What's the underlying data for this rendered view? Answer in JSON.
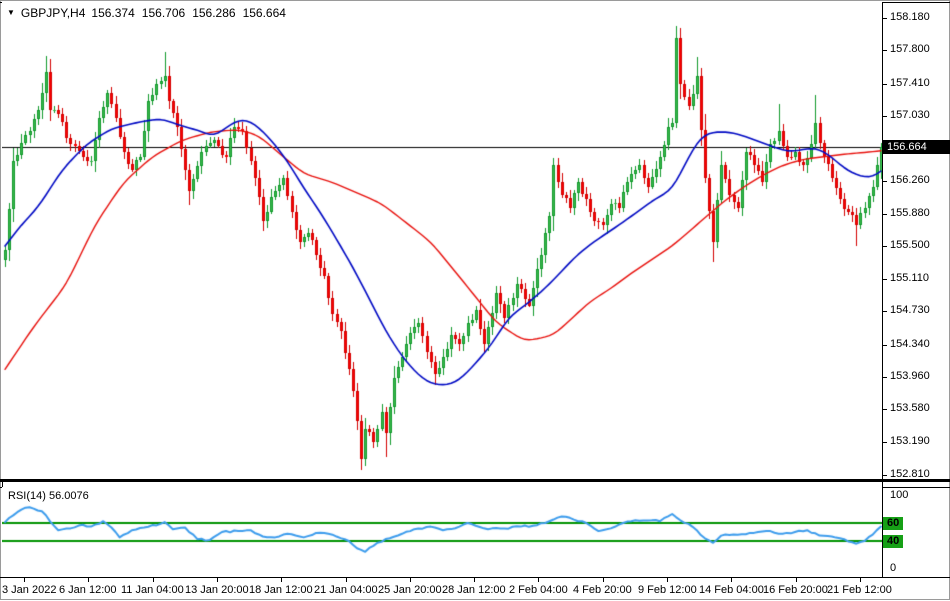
{
  "header": {
    "dropdown_icon": "▼",
    "title": "GBPJPY,H4",
    "open": "156.374",
    "high": "156.706",
    "low": "156.286",
    "close": "156.664"
  },
  "colors": {
    "bull_fill": "#3cb94e",
    "bull_edge": "#119a2b",
    "bear_fill": "#fd0505",
    "bear_edge": "#d40000",
    "ma_fast": "#0009c4",
    "ma_slow": "#e8100c",
    "rsi_line": "#3e9ded",
    "rsi_level": "#009200",
    "price_line": "#000000",
    "badge_bg": "#16a016",
    "current_badge_bg": "#000000"
  },
  "price_axis": {
    "min": 152.76,
    "max": 158.37,
    "current": "156.664",
    "current_value": 156.664,
    "ticks": [
      {
        "label": "158.180",
        "value": 158.18
      },
      {
        "label": "157.800",
        "value": 157.8
      },
      {
        "label": "157.410",
        "value": 157.41
      },
      {
        "label": "157.030",
        "value": 157.03
      },
      {
        "label": "156.260",
        "value": 156.26
      },
      {
        "label": "155.880",
        "value": 155.88
      },
      {
        "label": "155.500",
        "value": 155.5
      },
      {
        "label": "155.110",
        "value": 155.11
      },
      {
        "label": "154.730",
        "value": 154.73
      },
      {
        "label": "154.340",
        "value": 154.34
      },
      {
        "label": "153.960",
        "value": 153.96
      },
      {
        "label": "153.580",
        "value": 153.58
      },
      {
        "label": "153.190",
        "value": 153.19
      },
      {
        "label": "152.810",
        "value": 152.81
      }
    ]
  },
  "time_axis": {
    "labels": [
      "3 Jan 2022",
      "6 Jan 12:00",
      "11 Jan 04:00",
      "13 Jan 20:00",
      "18 Jan 12:00",
      "21 Jan 04:00",
      "25 Jan 20:00",
      "28 Jan 12:00",
      "2 Feb 04:00",
      "4 Feb 20:00",
      "9 Feb 12:00",
      "14 Feb 04:00",
      "16 Feb 20:00",
      "21 Feb 12:00"
    ],
    "first_center": 24,
    "spacing": 64.3
  },
  "rsi_pane": {
    "label": "RSI(14) 56.0076",
    "axis_top": "100",
    "axis_bottom": "0",
    "range": [
      0,
      100
    ],
    "levels": [
      {
        "label": "60",
        "value": 60
      },
      {
        "label": "40",
        "value": 40
      }
    ]
  },
  "chart_data": {
    "type": "candlestick",
    "symbol": "GBPJPY",
    "timeframe": "H4",
    "title": "GBPJPY,H4",
    "candle_count": 215,
    "ylim": [
      152.76,
      158.37
    ],
    "grid": false,
    "current_price": 156.664,
    "last_candle": {
      "o": 156.374,
      "h": 156.706,
      "l": 156.286,
      "c": 156.664
    },
    "close_anchors": [
      [
        0,
        155.45
      ],
      [
        2,
        156.5
      ],
      [
        5,
        156.8
      ],
      [
        8,
        157.1
      ],
      [
        10,
        157.55
      ],
      [
        11,
        157.1
      ],
      [
        13,
        157.05
      ],
      [
        16,
        156.7
      ],
      [
        19,
        156.55
      ],
      [
        21,
        156.5
      ],
      [
        23,
        157.0
      ],
      [
        25,
        157.3
      ],
      [
        27,
        157.0
      ],
      [
        29,
        156.6
      ],
      [
        31,
        156.4
      ],
      [
        33,
        156.55
      ],
      [
        35,
        157.2
      ],
      [
        37,
        157.4
      ],
      [
        39,
        157.5
      ],
      [
        40,
        157.2
      ],
      [
        42,
        156.9
      ],
      [
        44,
        156.4
      ],
      [
        45,
        156.15
      ],
      [
        48,
        156.6
      ],
      [
        51,
        156.75
      ],
      [
        54,
        156.55
      ],
      [
        56,
        156.9
      ],
      [
        58,
        156.85
      ],
      [
        60,
        156.5
      ],
      [
        61,
        156.3
      ],
      [
        63,
        155.8
      ],
      [
        66,
        156.15
      ],
      [
        68,
        156.3
      ],
      [
        70,
        155.9
      ],
      [
        72,
        155.55
      ],
      [
        74,
        155.65
      ],
      [
        76,
        155.4
      ],
      [
        78,
        155.15
      ],
      [
        80,
        154.7
      ],
      [
        82,
        154.5
      ],
      [
        84,
        154.05
      ],
      [
        85,
        153.8
      ],
      [
        87,
        153.0
      ],
      [
        88,
        153.35
      ],
      [
        90,
        153.2
      ],
      [
        92,
        153.55
      ],
      [
        93,
        153.3
      ],
      [
        95,
        153.95
      ],
      [
        98,
        154.35
      ],
      [
        101,
        154.6
      ],
      [
        103,
        154.25
      ],
      [
        105,
        154.0
      ],
      [
        107,
        154.2
      ],
      [
        109,
        154.45
      ],
      [
        111,
        154.35
      ],
      [
        113,
        154.6
      ],
      [
        115,
        154.75
      ],
      [
        117,
        154.35
      ],
      [
        120,
        154.95
      ],
      [
        122,
        154.65
      ],
      [
        125,
        155.05
      ],
      [
        128,
        154.8
      ],
      [
        131,
        155.4
      ],
      [
        133,
        155.85
      ],
      [
        134,
        156.45
      ],
      [
        136,
        156.1
      ],
      [
        138,
        155.95
      ],
      [
        140,
        156.25
      ],
      [
        142,
        156.05
      ],
      [
        144,
        155.8
      ],
      [
        146,
        155.75
      ],
      [
        148,
        156.0
      ],
      [
        150,
        155.95
      ],
      [
        152,
        156.25
      ],
      [
        155,
        156.45
      ],
      [
        157,
        156.2
      ],
      [
        160,
        156.55
      ],
      [
        162,
        156.9
      ],
      [
        163,
        156.95
      ],
      [
        164,
        157.95
      ],
      [
        165,
        157.4
      ],
      [
        167,
        157.15
      ],
      [
        169,
        157.5
      ],
      [
        171,
        156.3
      ],
      [
        173,
        155.55
      ],
      [
        175,
        156.45
      ],
      [
        177,
        156.1
      ],
      [
        179,
        155.95
      ],
      [
        181,
        156.6
      ],
      [
        183,
        156.45
      ],
      [
        185,
        156.25
      ],
      [
        187,
        156.7
      ],
      [
        189,
        156.85
      ],
      [
        191,
        156.55
      ],
      [
        193,
        156.6
      ],
      [
        195,
        156.45
      ],
      [
        197,
        156.7
      ],
      [
        198,
        156.95
      ],
      [
        200,
        156.55
      ],
      [
        202,
        156.3
      ],
      [
        204,
        156.05
      ],
      [
        206,
        155.9
      ],
      [
        208,
        155.75
      ],
      [
        210,
        155.95
      ],
      [
        212,
        156.2
      ],
      [
        214,
        156.664
      ]
    ],
    "forced_highs": {
      "10": 157.74,
      "39": 157.78,
      "134": 156.54,
      "164": 158.09,
      "169": 157.72,
      "189": 157.17,
      "198": 157.28
    },
    "forced_lows": {
      "45": 155.98,
      "87": 152.87,
      "93": 153.02,
      "105": 153.86,
      "173": 155.31,
      "208": 155.5
    },
    "ma_fast_blue_anchors": [
      [
        0,
        155.5
      ],
      [
        4,
        155.75
      ],
      [
        8,
        155.95
      ],
      [
        14,
        156.4
      ],
      [
        20,
        156.7
      ],
      [
        26,
        156.88
      ],
      [
        32,
        156.95
      ],
      [
        38,
        157.0
      ],
      [
        44,
        156.9
      ],
      [
        48,
        156.85
      ],
      [
        51,
        156.78
      ],
      [
        55,
        156.93
      ],
      [
        58,
        157.0
      ],
      [
        61,
        156.94
      ],
      [
        65,
        156.75
      ],
      [
        69,
        156.5
      ],
      [
        73,
        156.18
      ],
      [
        77,
        155.9
      ],
      [
        81,
        155.58
      ],
      [
        85,
        155.25
      ],
      [
        89,
        154.88
      ],
      [
        93,
        154.5
      ],
      [
        97,
        154.2
      ],
      [
        101,
        153.98
      ],
      [
        104,
        153.88
      ],
      [
        108,
        153.86
      ],
      [
        111,
        153.92
      ],
      [
        115,
        154.12
      ],
      [
        119,
        154.35
      ],
      [
        123,
        154.66
      ],
      [
        127,
        154.8
      ],
      [
        131,
        154.96
      ],
      [
        135,
        155.15
      ],
      [
        139,
        155.36
      ],
      [
        143,
        155.52
      ],
      [
        147,
        155.65
      ],
      [
        151,
        155.78
      ],
      [
        155,
        155.92
      ],
      [
        159,
        156.06
      ],
      [
        163,
        156.16
      ],
      [
        166,
        156.45
      ],
      [
        169,
        156.72
      ],
      [
        171,
        156.82
      ],
      [
        175,
        156.85
      ],
      [
        179,
        156.82
      ],
      [
        183,
        156.75
      ],
      [
        187,
        156.68
      ],
      [
        191,
        156.61
      ],
      [
        195,
        156.63
      ],
      [
        197,
        156.66
      ],
      [
        200,
        156.62
      ],
      [
        203,
        156.5
      ],
      [
        206,
        156.38
      ],
      [
        209,
        156.32
      ],
      [
        212,
        156.3
      ],
      [
        214,
        156.38
      ]
    ],
    "ma_slow_red_anchors": [
      [
        0,
        154.05
      ],
      [
        7,
        154.55
      ],
      [
        15,
        155.05
      ],
      [
        22,
        155.75
      ],
      [
        29,
        156.25
      ],
      [
        36,
        156.55
      ],
      [
        43,
        156.74
      ],
      [
        50,
        156.84
      ],
      [
        57,
        156.87
      ],
      [
        62,
        156.8
      ],
      [
        66,
        156.63
      ],
      [
        73,
        156.35
      ],
      [
        80,
        156.25
      ],
      [
        92,
        156.0
      ],
      [
        104,
        155.55
      ],
      [
        112,
        155.08
      ],
      [
        120,
        154.6
      ],
      [
        127,
        154.38
      ],
      [
        134,
        154.45
      ],
      [
        143,
        154.85
      ],
      [
        148,
        155.0
      ],
      [
        153,
        155.18
      ],
      [
        158,
        155.34
      ],
      [
        163,
        155.5
      ],
      [
        170,
        155.79
      ],
      [
        175,
        156.0
      ],
      [
        180,
        156.18
      ],
      [
        185,
        156.33
      ],
      [
        190,
        156.45
      ],
      [
        195,
        156.52
      ],
      [
        200,
        156.55
      ],
      [
        205,
        156.58
      ],
      [
        210,
        156.6
      ],
      [
        214,
        156.62
      ]
    ],
    "rsi": {
      "period": 14,
      "value": 56.0076,
      "anchors": [
        [
          0,
          61
        ],
        [
          3,
          72
        ],
        [
          5,
          77
        ],
        [
          7,
          76
        ],
        [
          9,
          73
        ],
        [
          13,
          52
        ],
        [
          16,
          54
        ],
        [
          19,
          58
        ],
        [
          21,
          56
        ],
        [
          24,
          62
        ],
        [
          27,
          50
        ],
        [
          28,
          44
        ],
        [
          31,
          52
        ],
        [
          34,
          55
        ],
        [
          38,
          59
        ],
        [
          39,
          61
        ],
        [
          41,
          53
        ],
        [
          44,
          55
        ],
        [
          47,
          42
        ],
        [
          50,
          41
        ],
        [
          53,
          50
        ],
        [
          57,
          51
        ],
        [
          60,
          52
        ],
        [
          63,
          45
        ],
        [
          66,
          44
        ],
        [
          69,
          48
        ],
        [
          73,
          44
        ],
        [
          76,
          49
        ],
        [
          80,
          47
        ],
        [
          84,
          40
        ],
        [
          86,
          32
        ],
        [
          88,
          28
        ],
        [
          91,
          38
        ],
        [
          94,
          43
        ],
        [
          97,
          48
        ],
        [
          101,
          54
        ],
        [
          104,
          56
        ],
        [
          107,
          52
        ],
        [
          111,
          56
        ],
        [
          113,
          60
        ],
        [
          115,
          57
        ],
        [
          118,
          53
        ],
        [
          122,
          54
        ],
        [
          126,
          56
        ],
        [
          129,
          57
        ],
        [
          132,
          60
        ],
        [
          135,
          66
        ],
        [
          137,
          67
        ],
        [
          140,
          62
        ],
        [
          142,
          60
        ],
        [
          145,
          51
        ],
        [
          148,
          54
        ],
        [
          151,
          60
        ],
        [
          154,
          63
        ],
        [
          158,
          63
        ],
        [
          160,
          62
        ],
        [
          163,
          70
        ],
        [
          165,
          63
        ],
        [
          167,
          59
        ],
        [
          169,
          52
        ],
        [
          171,
          43
        ],
        [
          173,
          38
        ],
        [
          175,
          46
        ],
        [
          179,
          47
        ],
        [
          183,
          49
        ],
        [
          187,
          51
        ],
        [
          190,
          48
        ],
        [
          193,
          50
        ],
        [
          196,
          52
        ],
        [
          199,
          46
        ],
        [
          202,
          45
        ],
        [
          205,
          42
        ],
        [
          208,
          37
        ],
        [
          210,
          40
        ],
        [
          212,
          47
        ],
        [
          214,
          56.0076
        ]
      ]
    },
    "noise": {
      "seed": 987654,
      "close_amp": 0.045,
      "rsi_amp": 1.0
    }
  }
}
